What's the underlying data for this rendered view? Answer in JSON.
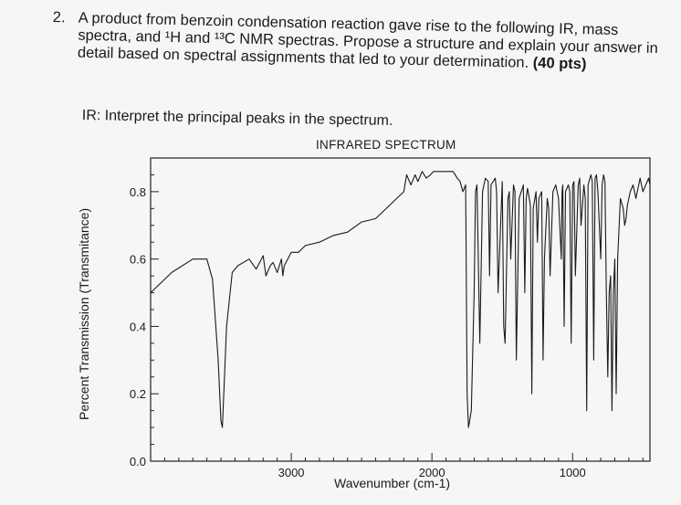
{
  "question": {
    "number": "2.",
    "text_main": "A product from benzoin condensation reaction gave rise to the following IR, mass spectra, and ¹H and ¹³C NMR spectras. Propose a structure and explain your answer in detail based on spectral assignments that led to your determination.",
    "points": "(40 pts)"
  },
  "ir_prompt": "IR: Interpret the principal peaks in the spectrum.",
  "chart_data": {
    "type": "line",
    "title": "INFRARED SPECTRUM",
    "xlabel": "Wavenumber (cm-1)",
    "ylabel": "Percent Transmission (Transmitance)",
    "xlim": [
      4000,
      450
    ],
    "ylim": [
      0.0,
      0.9
    ],
    "x_ticks": [
      "3000",
      "2000",
      "1000"
    ],
    "y_ticks": [
      "0.0",
      "0.2",
      "0.4",
      "0.6",
      "0.8"
    ],
    "series": [
      {
        "x": [
          4000,
          3850,
          3700,
          3600,
          3560,
          3520,
          3500,
          3490,
          3460,
          3420,
          3380,
          3300,
          3250,
          3200,
          3180,
          3150,
          3130,
          3100,
          3070,
          3060,
          3050,
          3000,
          2950,
          2900,
          2800,
          2700,
          2600,
          2500,
          2400,
          2300,
          2200,
          2180,
          2150,
          2120,
          2100,
          2070,
          2040,
          2010,
          1990,
          1950,
          1900,
          1850,
          1820,
          1800,
          1780,
          1760,
          1750,
          1740,
          1720,
          1700,
          1690,
          1680,
          1660,
          1640,
          1620,
          1600,
          1590,
          1580,
          1550,
          1540,
          1530,
          1500,
          1490,
          1480,
          1460,
          1450,
          1440,
          1420,
          1410,
          1400,
          1380,
          1350,
          1340,
          1330,
          1320,
          1300,
          1290,
          1280,
          1260,
          1250,
          1240,
          1220,
          1210,
          1200,
          1180,
          1170,
          1160,
          1140,
          1120,
          1100,
          1080,
          1075,
          1070,
          1060,
          1050,
          1030,
          1020,
          1010,
          1000,
          990,
          980,
          960,
          950,
          940,
          920,
          910,
          900,
          890,
          870,
          860,
          850,
          840,
          830,
          820,
          800,
          790,
          780,
          770,
          760,
          750,
          740,
          730,
          720,
          710,
          700,
          690,
          680,
          660,
          640,
          630,
          620,
          610,
          600,
          590,
          570,
          550,
          540,
          530,
          520,
          500,
          480,
          460,
          450
        ],
        "y": [
          0.5,
          0.56,
          0.6,
          0.6,
          0.54,
          0.3,
          0.12,
          0.1,
          0.4,
          0.56,
          0.58,
          0.6,
          0.57,
          0.61,
          0.55,
          0.58,
          0.59,
          0.56,
          0.6,
          0.55,
          0.58,
          0.62,
          0.62,
          0.64,
          0.65,
          0.67,
          0.68,
          0.71,
          0.72,
          0.76,
          0.8,
          0.85,
          0.82,
          0.85,
          0.83,
          0.86,
          0.84,
          0.85,
          0.86,
          0.86,
          0.86,
          0.86,
          0.84,
          0.83,
          0.8,
          0.82,
          0.2,
          0.1,
          0.15,
          0.5,
          0.8,
          0.82,
          0.35,
          0.8,
          0.84,
          0.83,
          0.55,
          0.82,
          0.84,
          0.8,
          0.5,
          0.83,
          0.4,
          0.35,
          0.78,
          0.8,
          0.6,
          0.82,
          0.8,
          0.3,
          0.78,
          0.82,
          0.5,
          0.78,
          0.81,
          0.76,
          0.2,
          0.75,
          0.8,
          0.65,
          0.78,
          0.8,
          0.3,
          0.6,
          0.78,
          0.75,
          0.55,
          0.8,
          0.82,
          0.78,
          0.6,
          0.8,
          0.82,
          0.4,
          0.8,
          0.82,
          0.8,
          0.35,
          0.82,
          0.83,
          0.55,
          0.82,
          0.84,
          0.7,
          0.82,
          0.78,
          0.15,
          0.82,
          0.85,
          0.83,
          0.3,
          0.84,
          0.85,
          0.8,
          0.6,
          0.82,
          0.85,
          0.83,
          0.5,
          0.25,
          0.5,
          0.55,
          0.15,
          0.5,
          0.6,
          0.2,
          0.6,
          0.78,
          0.75,
          0.7,
          0.72,
          0.76,
          0.78,
          0.8,
          0.82,
          0.78,
          0.8,
          0.82,
          0.84,
          0.8,
          0.82,
          0.84,
          0.82
        ]
      }
    ]
  }
}
